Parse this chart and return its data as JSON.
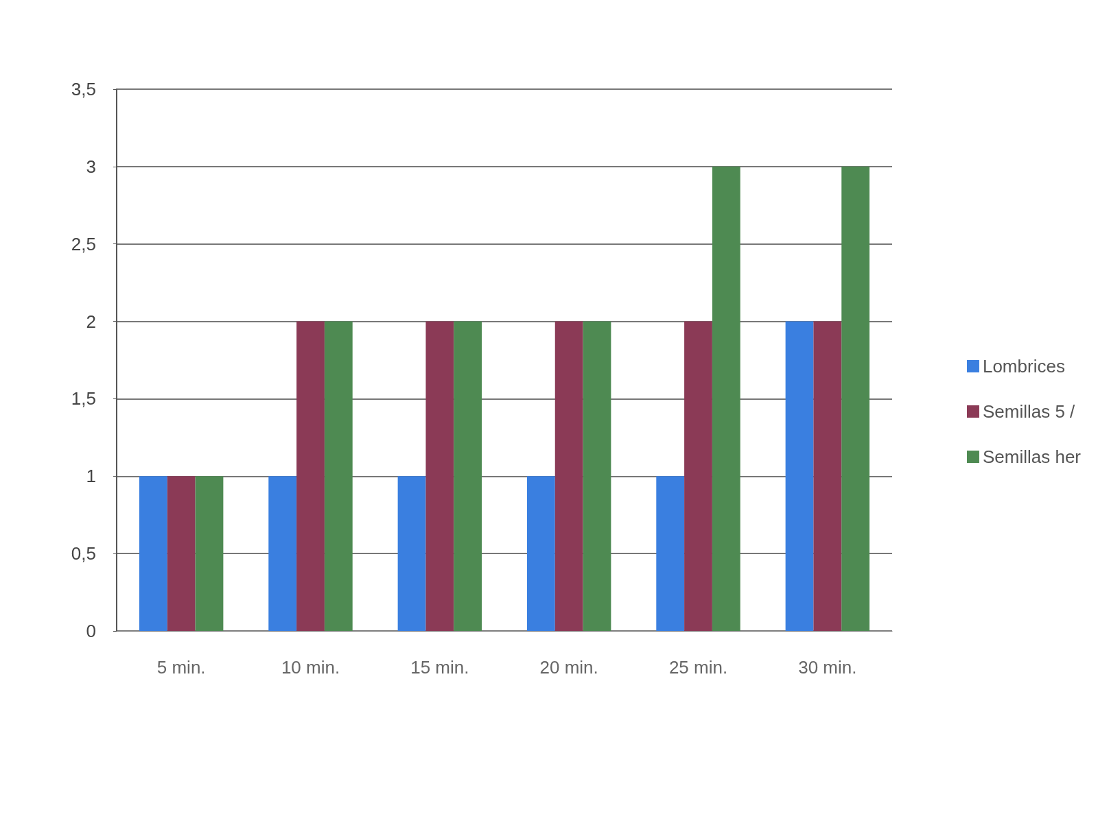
{
  "chart_data": {
    "type": "bar",
    "categories": [
      "5 min.",
      "10 min.",
      "15 min.",
      "20 min.",
      "25 min.",
      "30 min."
    ],
    "series": [
      {
        "name": "Lombrices",
        "color": "#3a7fe0",
        "values": [
          1,
          1,
          1,
          1,
          1,
          2
        ]
      },
      {
        "name": "Semillas 5 /",
        "color": "#8b3a56",
        "values": [
          1,
          2,
          2,
          2,
          2,
          2
        ]
      },
      {
        "name": "Semillas her",
        "color": "#4e8a52",
        "values": [
          1,
          2,
          2,
          2,
          3,
          3
        ]
      }
    ],
    "ylim": [
      0,
      3.5
    ],
    "yticks": [
      0,
      {
        "value": 0.5,
        "label": "0,5"
      },
      1,
      {
        "value": 1.5,
        "label": "1,5"
      },
      2,
      {
        "value": 2.5,
        "label": "2,5"
      },
      3,
      {
        "value": 3.5,
        "label": "3,5"
      }
    ],
    "grid": "y",
    "legend": "right"
  }
}
